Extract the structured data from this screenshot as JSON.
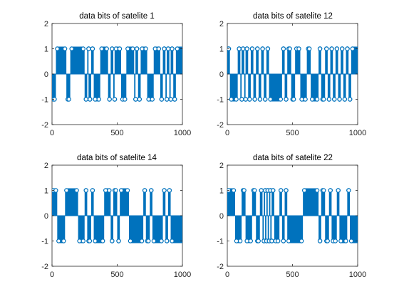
{
  "chart_data": [
    {
      "type": "stem",
      "title": "data bits of satelite 1",
      "xlim": [
        0,
        1000
      ],
      "ylim": [
        -2,
        2
      ],
      "xticks": [
        0,
        500,
        1000
      ],
      "yticks": [
        -2,
        -1,
        0,
        1,
        2
      ],
      "color": "#0072bd",
      "n_samples": 1023,
      "segments": [
        [
          0,
          30,
          -1
        ],
        [
          30,
          110,
          1
        ],
        [
          110,
          140,
          -1
        ],
        [
          140,
          250,
          1
        ],
        [
          250,
          270,
          -1
        ],
        [
          270,
          280,
          1
        ],
        [
          280,
          300,
          -1
        ],
        [
          300,
          320,
          1
        ],
        [
          320,
          370,
          -1
        ],
        [
          370,
          430,
          1
        ],
        [
          430,
          450,
          -1
        ],
        [
          450,
          470,
          1
        ],
        [
          470,
          480,
          -1
        ],
        [
          480,
          530,
          1
        ],
        [
          530,
          570,
          -1
        ],
        [
          570,
          630,
          1
        ],
        [
          630,
          640,
          -1
        ],
        [
          640,
          660,
          1
        ],
        [
          660,
          680,
          -1
        ],
        [
          680,
          730,
          1
        ],
        [
          730,
          780,
          -1
        ],
        [
          780,
          830,
          1
        ],
        [
          830,
          850,
          -1
        ],
        [
          850,
          870,
          1
        ],
        [
          870,
          880,
          -1
        ],
        [
          880,
          900,
          1
        ],
        [
          900,
          910,
          -1
        ],
        [
          910,
          930,
          1
        ],
        [
          930,
          950,
          -1
        ],
        [
          950,
          1023,
          1
        ]
      ]
    },
    {
      "type": "stem",
      "title": "data bits of satelite 12",
      "xlim": [
        0,
        1000
      ],
      "ylim": [
        -2,
        2
      ],
      "xticks": [
        0,
        500,
        1000
      ],
      "yticks": [
        -2,
        -1,
        0,
        1,
        2
      ],
      "color": "#0072bd",
      "n_samples": 1023,
      "segments": [
        [
          0,
          20,
          1
        ],
        [
          20,
          80,
          -1
        ],
        [
          80,
          100,
          1
        ],
        [
          100,
          110,
          -1
        ],
        [
          110,
          130,
          1
        ],
        [
          130,
          140,
          -1
        ],
        [
          140,
          160,
          1
        ],
        [
          160,
          180,
          -1
        ],
        [
          180,
          200,
          1
        ],
        [
          200,
          220,
          -1
        ],
        [
          220,
          240,
          1
        ],
        [
          240,
          260,
          -1
        ],
        [
          260,
          280,
          1
        ],
        [
          280,
          300,
          -1
        ],
        [
          300,
          320,
          1
        ],
        [
          320,
          420,
          -1
        ],
        [
          420,
          440,
          1
        ],
        [
          440,
          460,
          -1
        ],
        [
          460,
          490,
          1
        ],
        [
          490,
          520,
          -1
        ],
        [
          520,
          560,
          1
        ],
        [
          560,
          610,
          -1
        ],
        [
          610,
          640,
          1
        ],
        [
          640,
          700,
          -1
        ],
        [
          700,
          720,
          1
        ],
        [
          720,
          750,
          -1
        ],
        [
          750,
          770,
          1
        ],
        [
          770,
          790,
          -1
        ],
        [
          790,
          810,
          1
        ],
        [
          810,
          830,
          -1
        ],
        [
          830,
          850,
          1
        ],
        [
          850,
          870,
          -1
        ],
        [
          870,
          890,
          1
        ],
        [
          890,
          910,
          -1
        ],
        [
          910,
          930,
          1
        ],
        [
          930,
          950,
          -1
        ],
        [
          950,
          1023,
          1
        ]
      ]
    },
    {
      "type": "stem",
      "title": "data bits of satelite 14",
      "xlim": [
        0,
        1000
      ],
      "ylim": [
        -2,
        2
      ],
      "xticks": [
        0,
        500,
        1000
      ],
      "yticks": [
        -2,
        -1,
        0,
        1,
        2
      ],
      "color": "#0072bd",
      "n_samples": 1023,
      "segments": [
        [
          0,
          40,
          1
        ],
        [
          40,
          100,
          -1
        ],
        [
          100,
          200,
          1
        ],
        [
          200,
          250,
          -1
        ],
        [
          250,
          270,
          1
        ],
        [
          270,
          300,
          -1
        ],
        [
          300,
          320,
          1
        ],
        [
          320,
          400,
          -1
        ],
        [
          400,
          450,
          1
        ],
        [
          450,
          470,
          -1
        ],
        [
          470,
          500,
          1
        ],
        [
          500,
          520,
          -1
        ],
        [
          520,
          590,
          1
        ],
        [
          590,
          700,
          -1
        ],
        [
          700,
          720,
          1
        ],
        [
          720,
          750,
          -1
        ],
        [
          750,
          770,
          1
        ],
        [
          770,
          850,
          -1
        ],
        [
          850,
          870,
          1
        ],
        [
          870,
          890,
          -1
        ],
        [
          890,
          910,
          1
        ],
        [
          910,
          1023,
          -1
        ]
      ]
    },
    {
      "type": "stem",
      "title": "data bits of satelite 22",
      "xlim": [
        0,
        1000
      ],
      "ylim": [
        -2,
        2
      ],
      "xticks": [
        0,
        500,
        1000
      ],
      "yticks": [
        -2,
        -1,
        0,
        1,
        2
      ],
      "color": "#0072bd",
      "n_samples": 1023,
      "segments": [
        [
          0,
          60,
          1
        ],
        [
          60,
          110,
          -1
        ],
        [
          110,
          140,
          1
        ],
        [
          140,
          190,
          -1
        ],
        [
          190,
          220,
          1
        ],
        [
          220,
          250,
          -1
        ],
        [
          250,
          270,
          1
        ],
        [
          270,
          280,
          -1
        ],
        [
          280,
          290,
          1
        ],
        [
          290,
          300,
          -1
        ],
        [
          300,
          310,
          1
        ],
        [
          310,
          320,
          -1
        ],
        [
          320,
          330,
          1
        ],
        [
          330,
          340,
          -1
        ],
        [
          340,
          360,
          1
        ],
        [
          360,
          400,
          -1
        ],
        [
          400,
          420,
          1
        ],
        [
          420,
          440,
          -1
        ],
        [
          440,
          460,
          1
        ],
        [
          460,
          580,
          -1
        ],
        [
          580,
          700,
          1
        ],
        [
          700,
          720,
          -1
        ],
        [
          720,
          750,
          1
        ],
        [
          750,
          780,
          -1
        ],
        [
          780,
          800,
          1
        ],
        [
          800,
          840,
          -1
        ],
        [
          840,
          860,
          1
        ],
        [
          860,
          920,
          -1
        ],
        [
          920,
          940,
          1
        ],
        [
          940,
          1023,
          -1
        ]
      ]
    }
  ]
}
